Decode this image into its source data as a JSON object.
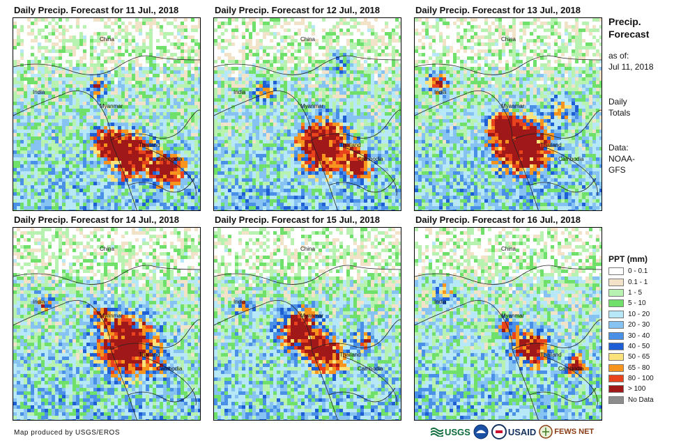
{
  "panels": [
    {
      "title": "Daily Precip. Forecast for 11 Jul., 2018"
    },
    {
      "title": "Daily Precip. Forecast for 12 Jul., 2018"
    },
    {
      "title": "Daily Precip. Forecast for 13 Jul., 2018"
    },
    {
      "title": "Daily Precip. Forecast for 14 Jul., 2018"
    },
    {
      "title": "Daily Precip. Forecast for 15 Jul., 2018"
    },
    {
      "title": "Daily Precip. Forecast for 16 Jul., 2018"
    }
  ],
  "country_labels": {
    "china": "China",
    "india": "India",
    "myanmar": "Myanmar",
    "thailand": "Thailand",
    "cambodia": "Cambodia"
  },
  "side": {
    "title": "Precip. Forecast",
    "as_of_label": "as of:",
    "as_of_date": "Jul 11, 2018",
    "period": "Daily Totals",
    "source_label": "Data:",
    "source": "NOAA-GFS"
  },
  "legend": {
    "title": "PPT (mm)",
    "items": [
      {
        "label": "0 - 0.1",
        "color": "#ffffff"
      },
      {
        "label": "0.1 - 1",
        "color": "#f2e2c8"
      },
      {
        "label": "1 - 5",
        "color": "#b7f2b0"
      },
      {
        "label": "5 - 10",
        "color": "#6fe06a"
      },
      {
        "label": "10 - 20",
        "color": "#b6e8f8"
      },
      {
        "label": "20 - 30",
        "color": "#86c3f2"
      },
      {
        "label": "30 - 40",
        "color": "#4a90e6"
      },
      {
        "label": "40 - 50",
        "color": "#1f5fd6"
      },
      {
        "label": "50 - 65",
        "color": "#fbe27a"
      },
      {
        "label": "65 - 80",
        "color": "#f7941d"
      },
      {
        "label": "80 - 100",
        "color": "#e8431c"
      },
      {
        "label": "> 100",
        "color": "#a01818"
      },
      {
        "label": "No Data",
        "color": "#8c8c8c"
      }
    ]
  },
  "footer": {
    "credit": "Map produced by USGS/EROS",
    "logos": {
      "usgs": "USGS",
      "usaid": "USAID",
      "fewsnet": "FEWS NET"
    }
  }
}
